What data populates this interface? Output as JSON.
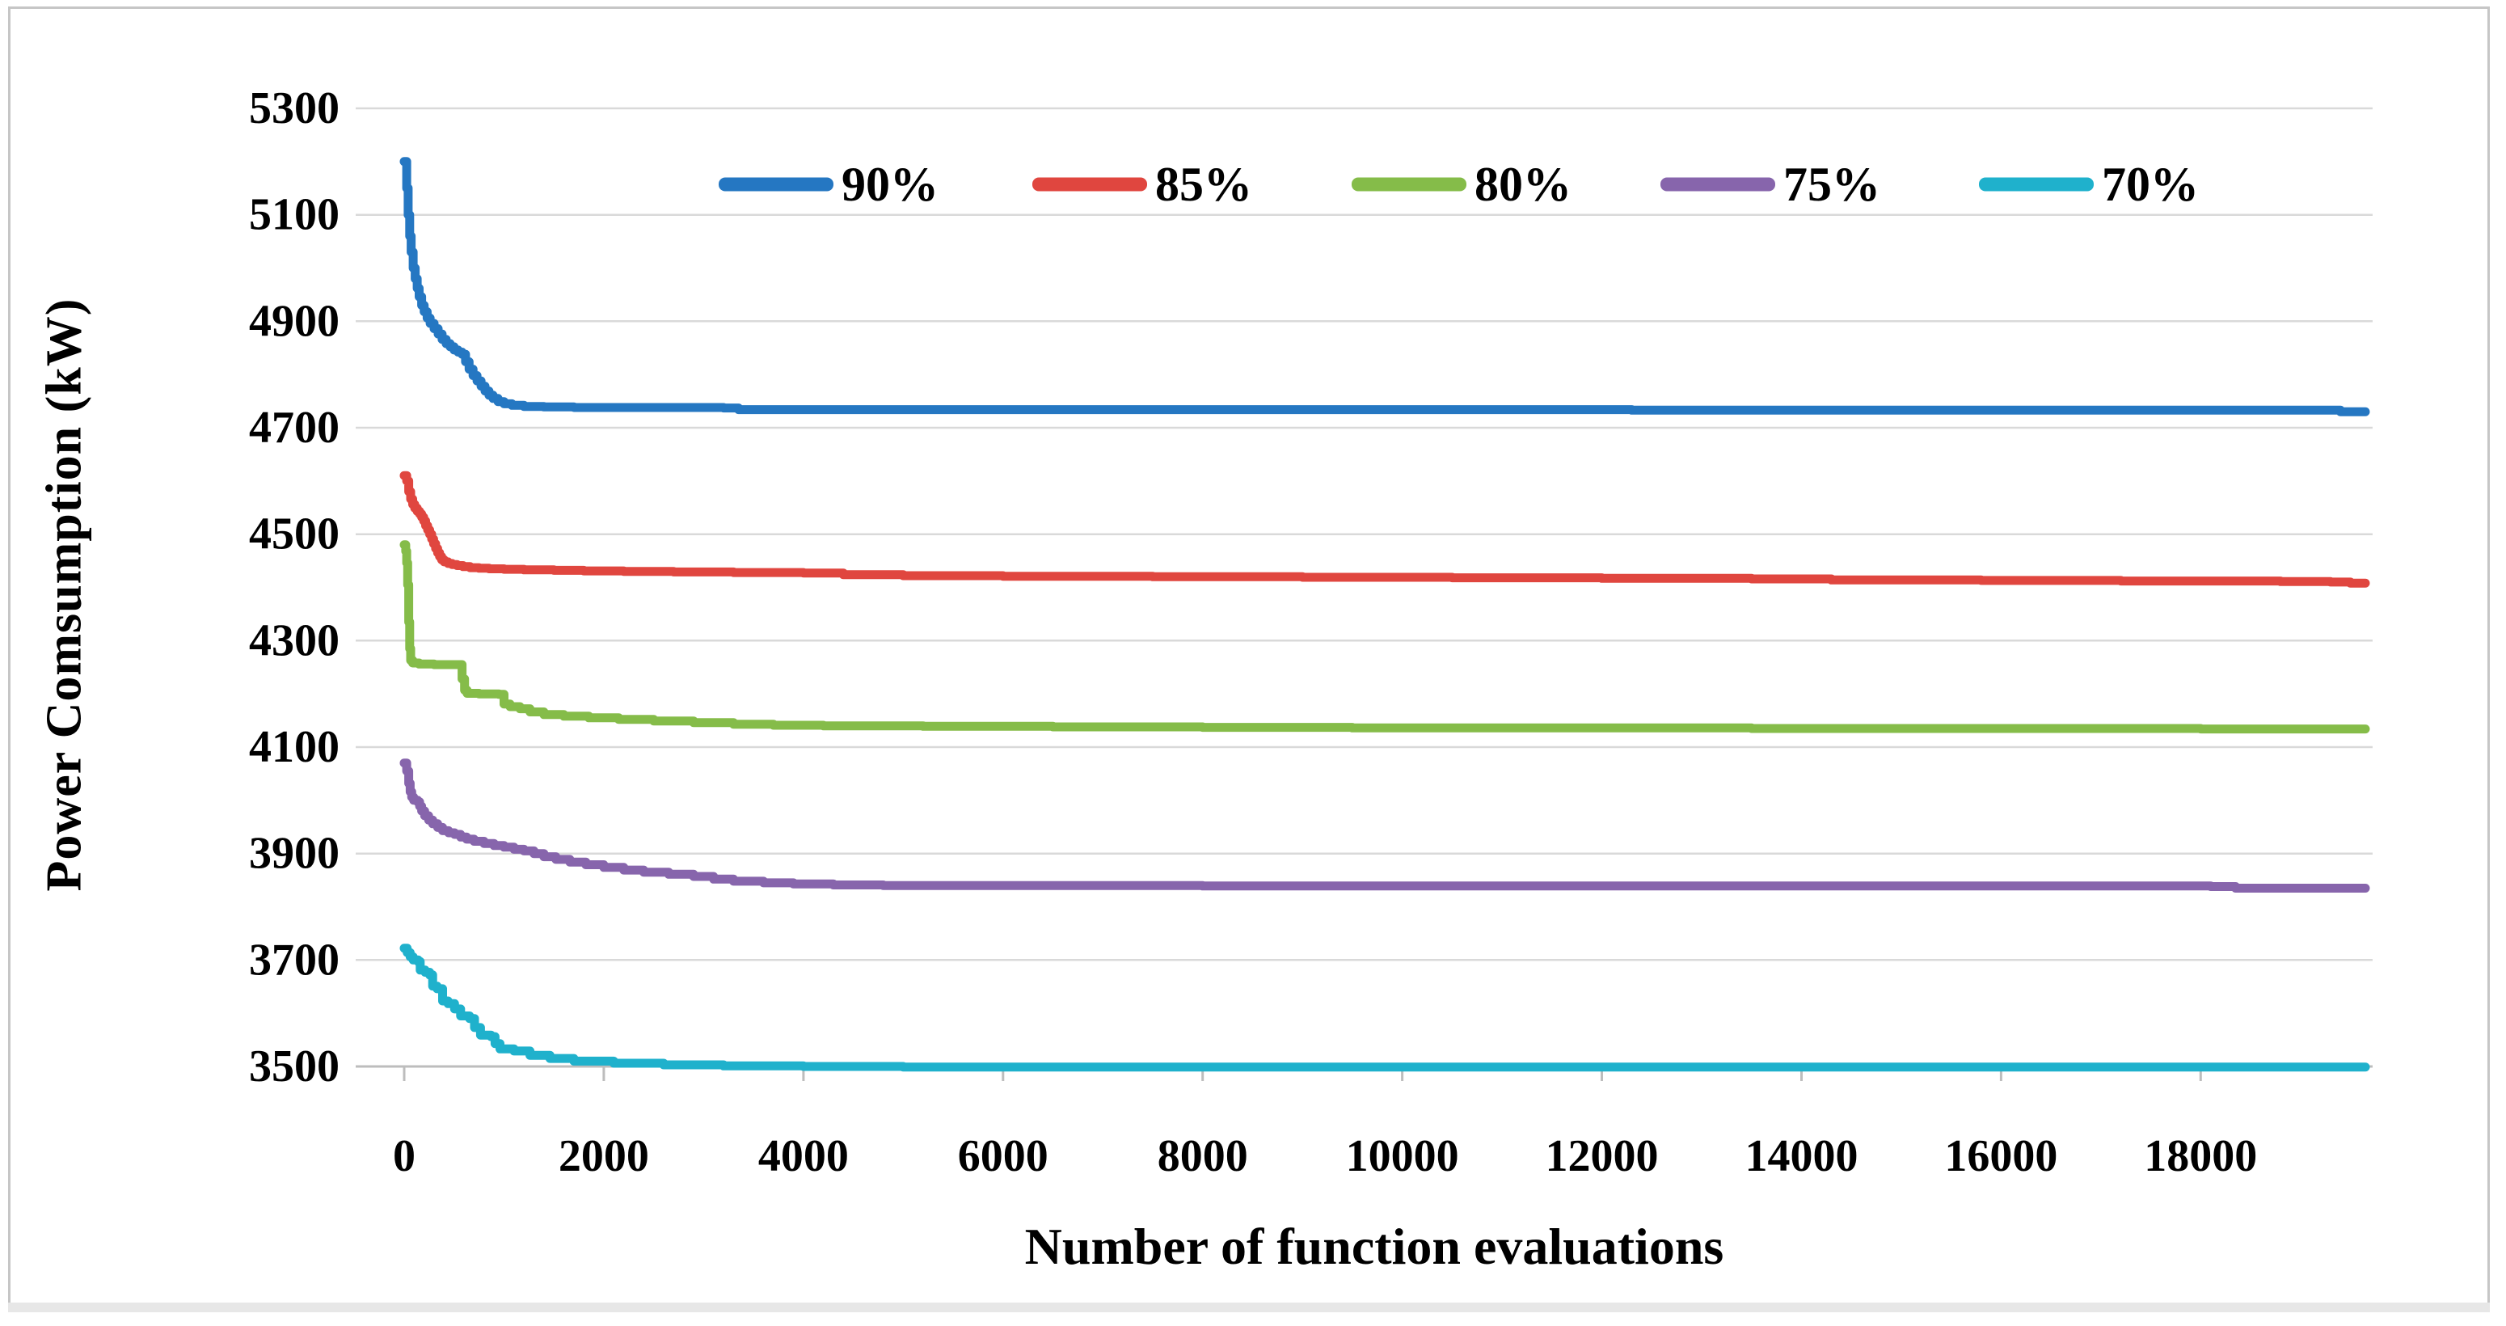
{
  "chart_data": {
    "type": "line",
    "title": "",
    "xlabel": "Number of function evaluations",
    "ylabel": "Power Comsumption (kW)",
    "xlim": [
      0,
      20000
    ],
    "ylim": [
      3500,
      5300
    ],
    "grid": "horizontal",
    "legend_position": "top-center",
    "x_ticks": [
      0,
      2000,
      4000,
      6000,
      8000,
      10000,
      12000,
      14000,
      16000,
      18000
    ],
    "x_tick_labels": [
      "0",
      "2000",
      "4000",
      "6000",
      "8000",
      "10000",
      "12000",
      "14000",
      "16000",
      "18000"
    ],
    "y_ticks": [
      5300,
      5100,
      4900,
      4700,
      4500,
      4300,
      4100,
      3900,
      3700,
      3500
    ],
    "y_tick_labels": [
      "5300",
      "5100",
      "4900",
      "4700",
      "4500",
      "4300",
      "4100",
      "3900",
      "3700",
      "3500"
    ],
    "colors": {
      "gridline": "#d9d9d9",
      "axis_line": "#bdbdbd",
      "tick_text": "#000000"
    },
    "legend": [
      {
        "label": "90%",
        "color": "#2577c2"
      },
      {
        "label": "85%",
        "color": "#e0463f"
      },
      {
        "label": "80%",
        "color": "#85bc49"
      },
      {
        "label": "75%",
        "color": "#8765ac"
      },
      {
        "label": "70%",
        "color": "#1fb1cc"
      }
    ],
    "series": [
      {
        "name": "90%",
        "color": "#2577c2",
        "points": [
          [
            0,
            5200
          ],
          [
            25,
            5150
          ],
          [
            40,
            5100
          ],
          [
            55,
            5060
          ],
          [
            70,
            5030
          ],
          [
            90,
            5000
          ],
          [
            110,
            4980
          ],
          [
            130,
            4962
          ],
          [
            150,
            4946
          ],
          [
            175,
            4930
          ],
          [
            200,
            4918
          ],
          [
            230,
            4906
          ],
          [
            260,
            4896
          ],
          [
            300,
            4886
          ],
          [
            340,
            4876
          ],
          [
            380,
            4866
          ],
          [
            420,
            4858
          ],
          [
            460,
            4852
          ],
          [
            500,
            4846
          ],
          [
            540,
            4842
          ],
          [
            580,
            4838
          ],
          [
            615,
            4824
          ],
          [
            650,
            4810
          ],
          [
            690,
            4798
          ],
          [
            730,
            4788
          ],
          [
            770,
            4778
          ],
          [
            810,
            4769
          ],
          [
            850,
            4761
          ],
          [
            890,
            4755
          ],
          [
            940,
            4749
          ],
          [
            1000,
            4745
          ],
          [
            1080,
            4742
          ],
          [
            1200,
            4740
          ],
          [
            1400,
            4739
          ],
          [
            1700,
            4738
          ],
          [
            2600,
            4738
          ],
          [
            3200,
            4737
          ],
          [
            3350,
            4734
          ],
          [
            6000,
            4734
          ],
          [
            12000,
            4734
          ],
          [
            12300,
            4733
          ],
          [
            19200,
            4733
          ],
          [
            19400,
            4730
          ],
          [
            19650,
            4730
          ]
        ]
      },
      {
        "name": "85%",
        "color": "#e0463f",
        "points": [
          [
            0,
            4610
          ],
          [
            25,
            4600
          ],
          [
            45,
            4580
          ],
          [
            65,
            4566
          ],
          [
            85,
            4556
          ],
          [
            105,
            4549
          ],
          [
            130,
            4543
          ],
          [
            155,
            4538
          ],
          [
            175,
            4532
          ],
          [
            195,
            4525
          ],
          [
            215,
            4516
          ],
          [
            235,
            4508
          ],
          [
            255,
            4500
          ],
          [
            275,
            4491
          ],
          [
            295,
            4482
          ],
          [
            315,
            4473
          ],
          [
            335,
            4465
          ],
          [
            355,
            4458
          ],
          [
            375,
            4452
          ],
          [
            400,
            4448
          ],
          [
            440,
            4445
          ],
          [
            480,
            4443
          ],
          [
            530,
            4441
          ],
          [
            590,
            4439
          ],
          [
            660,
            4437
          ],
          [
            750,
            4436
          ],
          [
            850,
            4435
          ],
          [
            1000,
            4434
          ],
          [
            1200,
            4433
          ],
          [
            1500,
            4432
          ],
          [
            1800,
            4431
          ],
          [
            2200,
            4430
          ],
          [
            2700,
            4429
          ],
          [
            3300,
            4428
          ],
          [
            4000,
            4427
          ],
          [
            4400,
            4424
          ],
          [
            5000,
            4422
          ],
          [
            6000,
            4421
          ],
          [
            7500,
            4420
          ],
          [
            9000,
            4419
          ],
          [
            10500,
            4418
          ],
          [
            12000,
            4417
          ],
          [
            13500,
            4416
          ],
          [
            14300,
            4414
          ],
          [
            15800,
            4413
          ],
          [
            17200,
            4412
          ],
          [
            18800,
            4411
          ],
          [
            19300,
            4410
          ],
          [
            19500,
            4408
          ],
          [
            19650,
            4408
          ]
        ]
      },
      {
        "name": "80%",
        "color": "#85bc49",
        "points": [
          [
            0,
            4480
          ],
          [
            15,
            4468
          ],
          [
            25,
            4446
          ],
          [
            35,
            4405
          ],
          [
            45,
            4335
          ],
          [
            55,
            4285
          ],
          [
            65,
            4263
          ],
          [
            85,
            4258
          ],
          [
            150,
            4256
          ],
          [
            300,
            4255
          ],
          [
            560,
            4255
          ],
          [
            580,
            4228
          ],
          [
            605,
            4207
          ],
          [
            630,
            4201
          ],
          [
            750,
            4200
          ],
          [
            950,
            4199
          ],
          [
            1000,
            4181
          ],
          [
            1060,
            4176
          ],
          [
            1160,
            4172
          ],
          [
            1260,
            4166
          ],
          [
            1400,
            4161
          ],
          [
            1600,
            4158
          ],
          [
            1850,
            4155
          ],
          [
            2150,
            4152
          ],
          [
            2500,
            4149
          ],
          [
            2900,
            4146
          ],
          [
            3300,
            4143
          ],
          [
            3700,
            4141
          ],
          [
            4200,
            4140
          ],
          [
            5200,
            4139
          ],
          [
            6500,
            4138
          ],
          [
            8000,
            4137
          ],
          [
            9500,
            4136
          ],
          [
            11500,
            4136
          ],
          [
            13500,
            4135
          ],
          [
            16000,
            4135
          ],
          [
            18000,
            4134
          ],
          [
            19650,
            4134
          ]
        ]
      },
      {
        "name": "75%",
        "color": "#8765ac",
        "points": [
          [
            0,
            4070
          ],
          [
            25,
            4055
          ],
          [
            45,
            4032
          ],
          [
            60,
            4016
          ],
          [
            75,
            4006
          ],
          [
            95,
            4000
          ],
          [
            135,
            3997
          ],
          [
            155,
            3989
          ],
          [
            175,
            3980
          ],
          [
            205,
            3971
          ],
          [
            245,
            3963
          ],
          [
            285,
            3956
          ],
          [
            335,
            3949
          ],
          [
            385,
            3943
          ],
          [
            445,
            3939
          ],
          [
            505,
            3936
          ],
          [
            565,
            3931
          ],
          [
            625,
            3927
          ],
          [
            700,
            3923
          ],
          [
            800,
            3919
          ],
          [
            900,
            3915
          ],
          [
            1000,
            3912
          ],
          [
            1100,
            3908
          ],
          [
            1200,
            3905
          ],
          [
            1300,
            3900
          ],
          [
            1400,
            3894
          ],
          [
            1520,
            3889
          ],
          [
            1660,
            3884
          ],
          [
            1820,
            3879
          ],
          [
            2000,
            3874
          ],
          [
            2200,
            3869
          ],
          [
            2400,
            3865
          ],
          [
            2650,
            3861
          ],
          [
            2900,
            3857
          ],
          [
            3100,
            3852
          ],
          [
            3300,
            3848
          ],
          [
            3600,
            3845
          ],
          [
            3900,
            3843
          ],
          [
            4300,
            3841
          ],
          [
            4800,
            3840
          ],
          [
            6000,
            3840
          ],
          [
            8000,
            3839
          ],
          [
            12000,
            3839
          ],
          [
            15000,
            3839
          ],
          [
            18100,
            3838
          ],
          [
            18350,
            3835
          ],
          [
            19650,
            3835
          ]
        ]
      },
      {
        "name": "70%",
        "color": "#1fb1cc",
        "points": [
          [
            0,
            3722
          ],
          [
            30,
            3714
          ],
          [
            60,
            3706
          ],
          [
            90,
            3700
          ],
          [
            140,
            3697
          ],
          [
            160,
            3681
          ],
          [
            210,
            3677
          ],
          [
            255,
            3672
          ],
          [
            285,
            3651
          ],
          [
            330,
            3646
          ],
          [
            385,
            3623
          ],
          [
            440,
            3618
          ],
          [
            505,
            3608
          ],
          [
            565,
            3595
          ],
          [
            655,
            3590
          ],
          [
            705,
            3573
          ],
          [
            765,
            3559
          ],
          [
            870,
            3556
          ],
          [
            910,
            3543
          ],
          [
            960,
            3533
          ],
          [
            1100,
            3529
          ],
          [
            1260,
            3521
          ],
          [
            1460,
            3515
          ],
          [
            1700,
            3510
          ],
          [
            2100,
            3506
          ],
          [
            2600,
            3503
          ],
          [
            3200,
            3501
          ],
          [
            4000,
            3500
          ],
          [
            5000,
            3499
          ],
          [
            19650,
            3499
          ]
        ]
      }
    ]
  }
}
